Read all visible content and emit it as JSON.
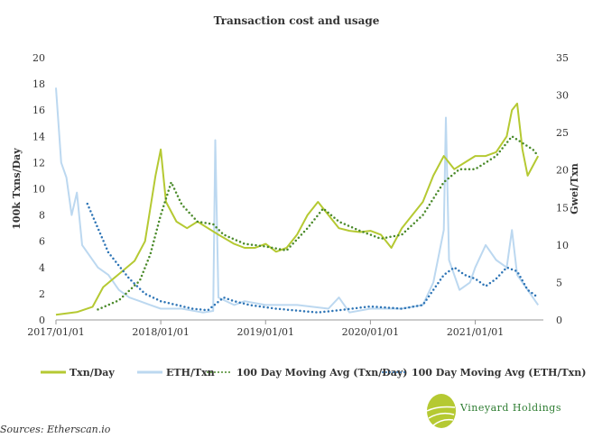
{
  "chart_data": {
    "type": "line",
    "title": "Transaction cost and usage",
    "ylabel": "100k Txns/Day",
    "y2label": "Gwei/Txn",
    "ylim": [
      0,
      20
    ],
    "y2lim": [
      0,
      35
    ],
    "yticks": [
      "0",
      "2",
      "4",
      "6",
      "8",
      "10",
      "12",
      "14",
      "16",
      "18",
      "20"
    ],
    "y2ticks": [
      "0",
      "5",
      "10",
      "15",
      "20",
      "25",
      "30",
      "35"
    ],
    "xlim": [
      2017.0,
      2021.65
    ],
    "xticks": [
      {
        "v": 2017.0,
        "label": "2017/01/01"
      },
      {
        "v": 2018.0,
        "label": "2018/01/01"
      },
      {
        "v": 2019.0,
        "label": "2019/01/01"
      },
      {
        "v": 2020.0,
        "label": "2020/01/01"
      },
      {
        "v": 2021.0,
        "label": "2021/01/01"
      }
    ],
    "legend_position": "bottom",
    "series": [
      {
        "name": "Txn/Day",
        "axis": "left",
        "color": "#b5c932",
        "style": "solid",
        "x": [
          2017.0,
          2017.2,
          2017.35,
          2017.45,
          2017.6,
          2017.75,
          2017.85,
          2017.95,
          2018.0,
          2018.05,
          2018.15,
          2018.25,
          2018.35,
          2018.45,
          2018.55,
          2018.7,
          2018.8,
          2018.9,
          2019.0,
          2019.1,
          2019.2,
          2019.3,
          2019.4,
          2019.5,
          2019.6,
          2019.7,
          2019.8,
          2019.9,
          2020.0,
          2020.1,
          2020.2,
          2020.3,
          2020.4,
          2020.5,
          2020.6,
          2020.7,
          2020.8,
          2020.9,
          2021.0,
          2021.1,
          2021.2,
          2021.3,
          2021.35,
          2021.4,
          2021.45,
          2021.5,
          2021.6
        ],
        "y": [
          0.4,
          0.6,
          1.0,
          2.5,
          3.5,
          4.5,
          6,
          11,
          13,
          9,
          7.5,
          7,
          7.5,
          7,
          6.5,
          5.8,
          5.5,
          5.5,
          5.8,
          5.2,
          5.5,
          6.5,
          8,
          9,
          8,
          7,
          6.8,
          6.7,
          6.8,
          6.5,
          5.5,
          7,
          8,
          9,
          11,
          12.5,
          11.5,
          12,
          12.5,
          12.5,
          12.8,
          14,
          16,
          16.5,
          13,
          11,
          12.5
        ]
      },
      {
        "name": "ETH/Txn",
        "axis": "right",
        "color": "#bcd8f0",
        "style": "solid",
        "x": [
          2017.0,
          2017.05,
          2017.1,
          2017.15,
          2017.2,
          2017.25,
          2017.3,
          2017.4,
          2017.5,
          2017.6,
          2017.7,
          2017.8,
          2017.9,
          2018.0,
          2018.2,
          2018.4,
          2018.5,
          2018.52,
          2018.55,
          2018.7,
          2018.8,
          2019.0,
          2019.3,
          2019.6,
          2019.7,
          2019.8,
          2020.0,
          2020.3,
          2020.5,
          2020.6,
          2020.7,
          2020.72,
          2020.75,
          2020.85,
          2020.95,
          2021.0,
          2021.1,
          2021.2,
          2021.3,
          2021.35,
          2021.4,
          2021.5,
          2021.6
        ],
        "y": [
          31,
          21,
          19,
          14,
          17,
          10,
          9,
          7,
          6,
          4,
          3,
          2.5,
          2,
          1.5,
          1.5,
          1,
          1.2,
          24,
          3,
          2,
          2.5,
          2,
          2,
          1.5,
          3,
          1,
          1.5,
          1.5,
          2,
          5,
          12,
          27,
          8,
          4,
          5,
          7,
          10,
          8,
          7,
          12,
          6,
          4,
          2
        ]
      },
      {
        "name": "100 Day Moving Avg (Txn/Day)",
        "axis": "left",
        "color": "#4a8a2a",
        "style": "dotted",
        "x": [
          2017.4,
          2017.6,
          2017.8,
          2017.9,
          2018.0,
          2018.1,
          2018.2,
          2018.35,
          2018.5,
          2018.6,
          2018.8,
          2019.0,
          2019.2,
          2019.4,
          2019.55,
          2019.7,
          2019.9,
          2020.1,
          2020.3,
          2020.5,
          2020.7,
          2020.85,
          2021.0,
          2021.2,
          2021.35,
          2021.45,
          2021.55,
          2021.6
        ],
        "y": [
          0.8,
          1.5,
          3,
          5,
          8,
          10.5,
          8.8,
          7.5,
          7.3,
          6.5,
          5.8,
          5.6,
          5.3,
          7,
          8.5,
          7.5,
          6.8,
          6.2,
          6.5,
          8,
          10.5,
          11.5,
          11.5,
          12.5,
          14,
          13.5,
          13,
          12.5
        ]
      },
      {
        "name": "100 Day Moving Avg (ETH/Txn)",
        "axis": "right",
        "color": "#2e75b6",
        "style": "dotted",
        "x": [
          2017.3,
          2017.5,
          2017.7,
          2017.85,
          2018.0,
          2018.3,
          2018.45,
          2018.6,
          2018.7,
          2018.85,
          2019.1,
          2019.5,
          2019.7,
          2020.0,
          2020.3,
          2020.5,
          2020.6,
          2020.7,
          2020.8,
          2020.9,
          2021.0,
          2021.1,
          2021.2,
          2021.3,
          2021.4,
          2021.5,
          2021.6
        ],
        "y": [
          15.5,
          9,
          5.5,
          3.5,
          2.5,
          1.5,
          1.3,
          3,
          2.5,
          2,
          1.5,
          1,
          1.3,
          1.8,
          1.5,
          2,
          4,
          6,
          7,
          6,
          5.5,
          4.5,
          5.5,
          7,
          6.5,
          4,
          3
        ]
      }
    ]
  },
  "footer": {
    "source": "Sources: Etherscan.io",
    "brand": "Vineyard Holdings"
  }
}
